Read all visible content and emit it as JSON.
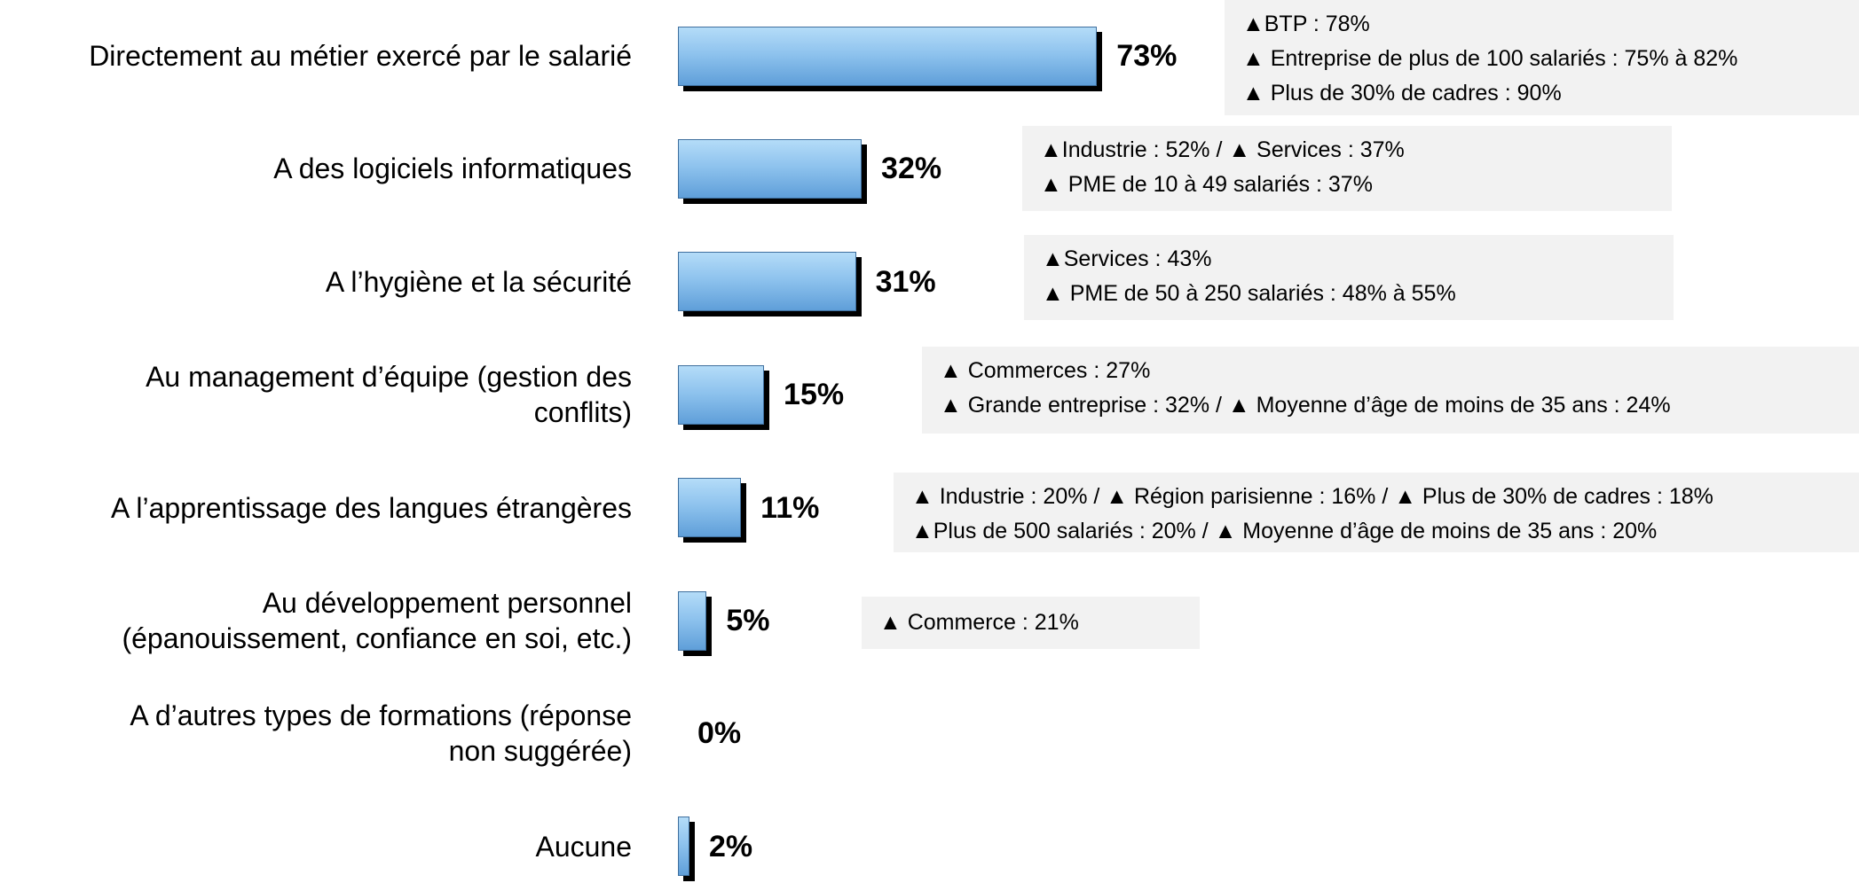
{
  "chart_data": {
    "type": "bar",
    "orientation": "horizontal",
    "categories": [
      "Directement au métier exercé par le salarié",
      "A des logiciels informatiques",
      "A l’hygiène et la sécurité",
      "Au management d’équipe (gestion des\nconflits)",
      "A l’apprentissage des langues étrangères",
      "Au développement personnel\n(épanouissement, confiance en soi, etc.)",
      "A d’autres types de formations (réponse\nnon suggérée)",
      "Aucune"
    ],
    "values": [
      73,
      32,
      31,
      15,
      11,
      5,
      0,
      2
    ],
    "value_labels": [
      "73%",
      "32%",
      "31%",
      "15%",
      "11%",
      "5%",
      "0%",
      "2%"
    ],
    "xlim": [
      0,
      100
    ],
    "annotations": [
      [
        "▲BTP : 78%",
        "▲ Entreprise de plus de 100 salariés : 75% à 82%",
        "▲ Plus de 30% de cadres : 90%"
      ],
      [
        "▲Industrie : 52% / ▲ Services : 37%",
        "▲ PME de 10 à 49 salariés : 37%"
      ],
      [
        "▲Services : 43%",
        "▲ PME de 50 à 250 salariés : 48% à 55%"
      ],
      [
        "▲ Commerces : 27%",
        "▲ Grande entreprise : 32% / ▲ Moyenne d’âge de moins de 35 ans : 24%"
      ],
      [
        "▲ Industrie : 20% / ▲ Région parisienne : 16% / ▲ Plus de 30% de cadres : 18%",
        "▲Plus de 500 salariés : 20% / ▲ Moyenne d’âge de moins de 35 ans : 20%"
      ],
      [
        "▲ Commerce  : 21%"
      ]
    ]
  }
}
